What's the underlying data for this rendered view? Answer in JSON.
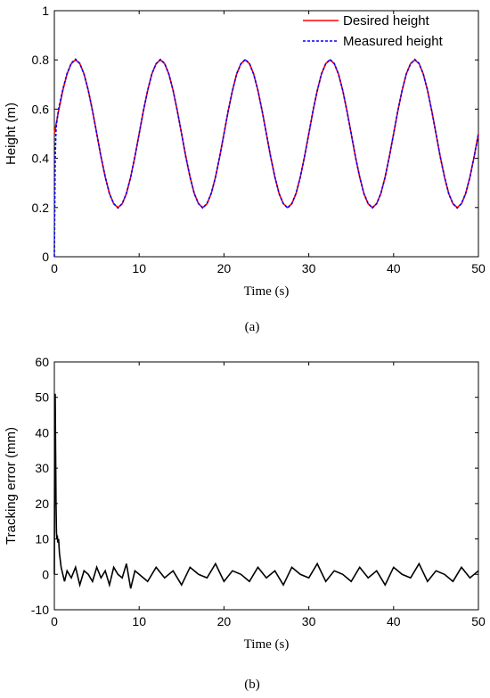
{
  "chart_data": [
    {
      "type": "line",
      "panel": "(a)",
      "xlabel": "Time (s)",
      "ylabel": "Height (m)",
      "xlim": [
        0,
        50
      ],
      "ylim": [
        0,
        1
      ],
      "xticks": [
        "0",
        "10",
        "20",
        "30",
        "40",
        "50"
      ],
      "yticks": [
        "0",
        "0.2",
        "0.4",
        "0.6",
        "0.8",
        "1"
      ],
      "legend_position": "top-right",
      "grid": false,
      "series": [
        {
          "name": "Desired height",
          "color": "#ff0000",
          "style": "solid",
          "x": [
            0,
            0.5,
            1,
            1.5,
            2,
            2.5,
            3,
            3.5,
            4,
            4.5,
            5,
            5.5,
            6,
            6.5,
            7,
            7.5,
            8,
            8.5,
            9,
            9.5,
            10,
            10.5,
            11,
            11.5,
            12,
            12.5,
            13,
            13.5,
            14,
            14.5,
            15,
            15.5,
            16,
            16.5,
            17,
            17.5,
            18,
            18.5,
            19,
            19.5,
            20,
            20.5,
            21,
            21.5,
            22,
            22.5,
            23,
            23.5,
            24,
            24.5,
            25,
            25.5,
            26,
            26.5,
            27,
            27.5,
            28,
            28.5,
            29,
            29.5,
            30,
            30.5,
            31,
            31.5,
            32,
            32.5,
            33,
            33.5,
            34,
            34.5,
            35,
            35.5,
            36,
            36.5,
            37,
            37.5,
            38,
            38.5,
            39,
            39.5,
            40,
            40.5,
            41,
            41.5,
            42,
            42.5,
            43,
            43.5,
            44,
            44.5,
            45,
            45.5,
            46,
            46.5,
            47,
            47.5,
            48,
            48.5,
            49,
            49.5,
            50
          ],
          "values": [
            0.5,
            0.593,
            0.676,
            0.743,
            0.785,
            0.8,
            0.785,
            0.743,
            0.676,
            0.593,
            0.5,
            0.407,
            0.324,
            0.257,
            0.215,
            0.2,
            0.215,
            0.257,
            0.324,
            0.407,
            0.5,
            0.593,
            0.676,
            0.743,
            0.785,
            0.8,
            0.785,
            0.743,
            0.676,
            0.593,
            0.5,
            0.407,
            0.324,
            0.257,
            0.215,
            0.2,
            0.215,
            0.257,
            0.324,
            0.407,
            0.5,
            0.593,
            0.676,
            0.743,
            0.785,
            0.8,
            0.785,
            0.743,
            0.676,
            0.593,
            0.5,
            0.407,
            0.324,
            0.257,
            0.215,
            0.2,
            0.215,
            0.257,
            0.324,
            0.407,
            0.5,
            0.593,
            0.676,
            0.743,
            0.785,
            0.8,
            0.785,
            0.743,
            0.676,
            0.593,
            0.5,
            0.407,
            0.324,
            0.257,
            0.215,
            0.2,
            0.215,
            0.257,
            0.324,
            0.407,
            0.5,
            0.593,
            0.676,
            0.743,
            0.785,
            0.8,
            0.785,
            0.743,
            0.676,
            0.593,
            0.5,
            0.407,
            0.324,
            0.257,
            0.215,
            0.2,
            0.215,
            0.257,
            0.324,
            0.407,
            0.5
          ]
        },
        {
          "name": "Measured height",
          "color": "#0000ff",
          "style": "dashed",
          "x": [
            0,
            0.05,
            0.1,
            0.2,
            0.3,
            0.5,
            1,
            1.5,
            2,
            2.5,
            3,
            3.5,
            4,
            4.5,
            5,
            5.5,
            6,
            6.5,
            7,
            7.5,
            8,
            8.5,
            9,
            9.5,
            10,
            10.5,
            11,
            11.5,
            12,
            12.5,
            13,
            13.5,
            14,
            14.5,
            15,
            15.5,
            16,
            16.5,
            17,
            17.5,
            18,
            18.5,
            19,
            19.5,
            20,
            20.5,
            21,
            21.5,
            22,
            22.5,
            23,
            23.5,
            24,
            24.5,
            25,
            25.5,
            26,
            26.5,
            27,
            27.5,
            28,
            28.5,
            29,
            29.5,
            30,
            30.5,
            31,
            31.5,
            32,
            32.5,
            33,
            33.5,
            34,
            34.5,
            35,
            35.5,
            36,
            36.5,
            37,
            37.5,
            38,
            38.5,
            39,
            39.5,
            40,
            40.5,
            41,
            41.5,
            42,
            42.5,
            43,
            43.5,
            44,
            44.5,
            45,
            45.5,
            46,
            46.5,
            47,
            47.5,
            48,
            48.5,
            49,
            49.5,
            50
          ],
          "values": [
            0,
            0.2,
            0.4,
            0.52,
            0.55,
            0.6,
            0.68,
            0.745,
            0.787,
            0.803,
            0.786,
            0.742,
            0.677,
            0.592,
            0.501,
            0.406,
            0.325,
            0.256,
            0.216,
            0.198,
            0.216,
            0.258,
            0.323,
            0.408,
            0.499,
            0.594,
            0.675,
            0.744,
            0.784,
            0.802,
            0.786,
            0.742,
            0.677,
            0.592,
            0.501,
            0.406,
            0.325,
            0.256,
            0.216,
            0.198,
            0.216,
            0.258,
            0.323,
            0.408,
            0.499,
            0.594,
            0.675,
            0.744,
            0.784,
            0.802,
            0.786,
            0.742,
            0.677,
            0.592,
            0.501,
            0.406,
            0.325,
            0.256,
            0.216,
            0.198,
            0.216,
            0.258,
            0.323,
            0.408,
            0.499,
            0.594,
            0.675,
            0.744,
            0.784,
            0.802,
            0.786,
            0.742,
            0.677,
            0.592,
            0.501,
            0.406,
            0.325,
            0.256,
            0.216,
            0.198,
            0.216,
            0.258,
            0.323,
            0.408,
            0.499,
            0.594,
            0.675,
            0.744,
            0.784,
            0.802,
            0.786,
            0.742,
            0.677,
            0.592,
            0.501,
            0.406,
            0.325,
            0.256,
            0.216,
            0.198,
            0.216,
            0.258,
            0.323,
            0.408,
            0.499
          ]
        }
      ]
    },
    {
      "type": "line",
      "panel": "(b)",
      "xlabel": "Time (s)",
      "ylabel": "Tracking error (mm)",
      "xlim": [
        0,
        50
      ],
      "ylim": [
        -10,
        60
      ],
      "xticks": [
        "0",
        "10",
        "20",
        "30",
        "40",
        "50"
      ],
      "yticks": [
        "-10",
        "0",
        "10",
        "20",
        "30",
        "40",
        "50",
        "60"
      ],
      "grid": false,
      "series": [
        {
          "color": "#000000",
          "style": "solid",
          "x": [
            0,
            0.05,
            0.1,
            0.15,
            0.2,
            0.25,
            0.3,
            0.35,
            0.4,
            0.5,
            0.6,
            0.7,
            0.8,
            0.9,
            1.0,
            1.2,
            1.5,
            2,
            2.5,
            3,
            3.5,
            4,
            4.5,
            5,
            5.5,
            6,
            6.5,
            7,
            7.5,
            8,
            8.5,
            9,
            9.5,
            10,
            11,
            12,
            13,
            14,
            15,
            16,
            17,
            18,
            19,
            20,
            21,
            22,
            23,
            24,
            25,
            26,
            27,
            28,
            29,
            30,
            31,
            32,
            33,
            34,
            35,
            36,
            37,
            38,
            39,
            40,
            41,
            42,
            43,
            44,
            45,
            46,
            47,
            48,
            49,
            50
          ],
          "values": [
            0,
            50,
            51,
            35,
            20,
            12,
            10,
            11,
            9,
            10,
            6,
            4,
            2,
            1,
            0,
            -2,
            1,
            -1,
            2,
            -3,
            1,
            0,
            -2,
            2,
            -1,
            1,
            -3,
            2,
            0,
            -1,
            3,
            -4,
            1,
            0,
            -2,
            2,
            -1,
            1,
            -3,
            2,
            0,
            -1,
            3,
            -2,
            1,
            0,
            -2,
            2,
            -1,
            1,
            -3,
            2,
            0,
            -1,
            3,
            -2,
            1,
            0,
            -2,
            2,
            -1,
            1,
            -3,
            2,
            0,
            -1,
            3,
            -2,
            1,
            0,
            -2,
            2,
            -1,
            1
          ]
        }
      ]
    }
  ],
  "captions": [
    "(a)",
    "(b)"
  ]
}
